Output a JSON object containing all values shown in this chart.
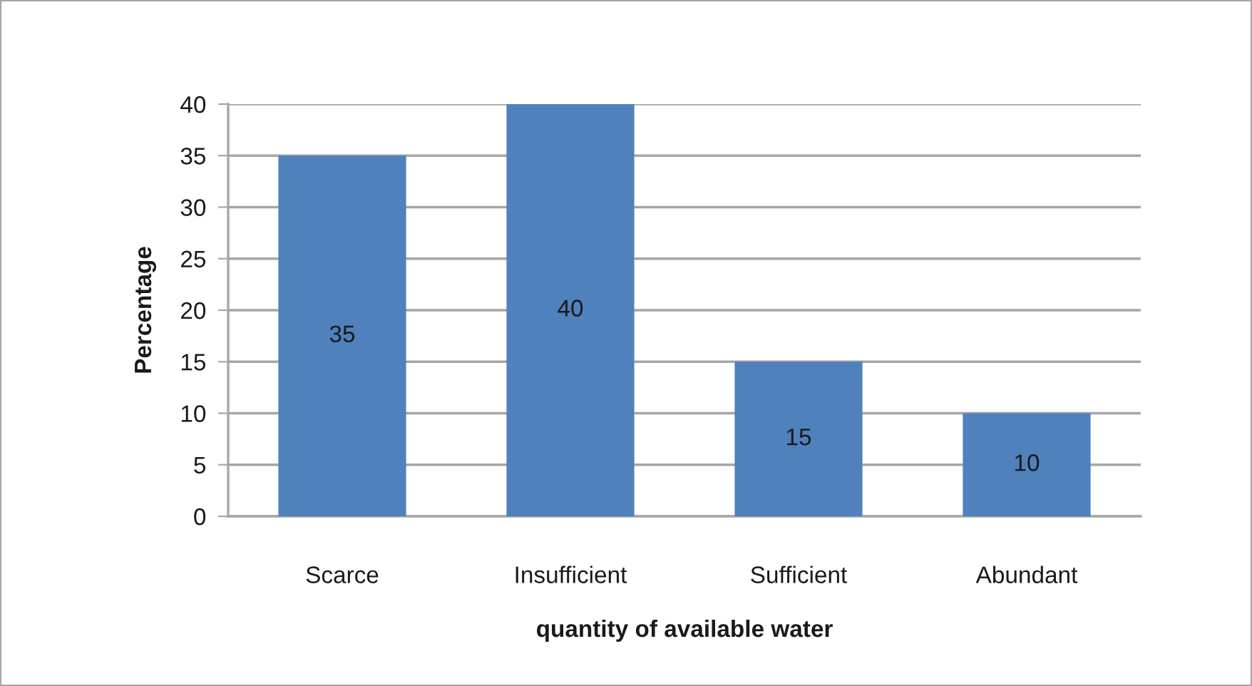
{
  "chart_data": {
    "type": "bar",
    "xlabel": "quantity of available water",
    "ylabel": "Percentage",
    "categories": [
      "Scarce",
      "Insufficient",
      "Sufficient",
      "Abundant"
    ],
    "values": [
      35,
      40,
      15,
      10
    ],
    "color": "#4f81bd",
    "ylim": [
      0,
      40
    ],
    "yticks": [
      0,
      5,
      10,
      15,
      20,
      25,
      30,
      35,
      40
    ],
    "grid": "y",
    "data_labels": true
  }
}
